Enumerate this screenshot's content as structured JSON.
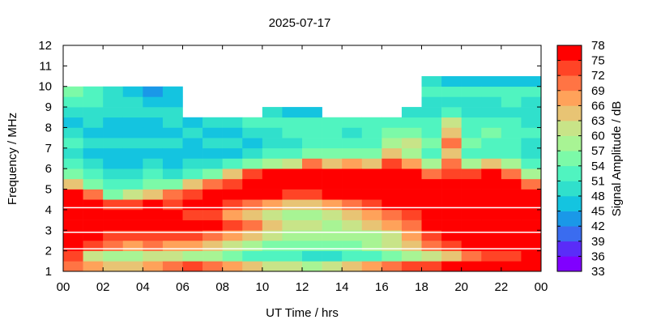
{
  "chart_data": {
    "type": "heatmap",
    "title": "2025-07-17",
    "xlabel": "UT Time / hrs",
    "ylabel": "Frequency / MHz",
    "xlim": [
      0,
      24
    ],
    "ylim": [
      1,
      12
    ],
    "x_ticks": [
      "00",
      "02",
      "04",
      "06",
      "08",
      "10",
      "12",
      "14",
      "16",
      "18",
      "20",
      "22",
      "00"
    ],
    "y_ticks": [
      "1",
      "2",
      "3",
      "4",
      "5",
      "6",
      "7",
      "8",
      "9",
      "10",
      "11",
      "12"
    ],
    "x_bin_hours": 1,
    "y_bin_mhz": 0.5,
    "y_start_mhz": 1,
    "gaps_mhz": [
      2.1,
      2.9,
      4.1
    ],
    "colorbar": {
      "label": "Signal Amplitude / dB",
      "ticks": [
        "33",
        "36",
        "39",
        "42",
        "45",
        "48",
        "51",
        "54",
        "57",
        "60",
        "63",
        "66",
        "69",
        "72",
        "75",
        "78"
      ],
      "range": [
        33,
        78
      ],
      "colors": [
        "#8000ff",
        "#5a2cf8",
        "#3a6cf0",
        "#1a98e8",
        "#14c4e0",
        "#30e0cc",
        "#50f4c0",
        "#7cfaa8",
        "#a8f494",
        "#c8e488",
        "#e8c474",
        "#ffa25a",
        "#ff7444",
        "#ff4426",
        "#ff0000"
      ]
    },
    "values_db_by_hour": [
      [
        70,
        73,
        76,
        76,
        76,
        76,
        76,
        76,
        64,
        55,
        52,
        49,
        52,
        49,
        46,
        49,
        52,
        55
      ],
      [
        67,
        61,
        73,
        76,
        76,
        76,
        76,
        70,
        55,
        52,
        49,
        46,
        49,
        46,
        49,
        49,
        52,
        52
      ],
      [
        64,
        58,
        70,
        73,
        76,
        76,
        73,
        55,
        52,
        49,
        46,
        46,
        49,
        46,
        46,
        49,
        49,
        49
      ],
      [
        64,
        58,
        67,
        73,
        76,
        76,
        73,
        61,
        52,
        49,
        46,
        46,
        49,
        46,
        46,
        49,
        49,
        46
      ],
      [
        67,
        61,
        70,
        73,
        76,
        76,
        76,
        64,
        55,
        52,
        49,
        46,
        49,
        46,
        46,
        49,
        46,
        43
      ],
      [
        70,
        61,
        67,
        73,
        76,
        76,
        73,
        70,
        55,
        49,
        46,
        46,
        49,
        46,
        49,
        49,
        46,
        46
      ],
      [
        73,
        58,
        67,
        73,
        76,
        73,
        76,
        73,
        64,
        52,
        49,
        46,
        46,
        49,
        46
      ],
      [
        70,
        58,
        64,
        70,
        76,
        73,
        76,
        76,
        70,
        55,
        49,
        46,
        49,
        46,
        49
      ],
      [
        67,
        55,
        61,
        67,
        73,
        67,
        73,
        76,
        73,
        64,
        52,
        46,
        49,
        46,
        49
      ],
      [
        64,
        52,
        58,
        64,
        70,
        64,
        70,
        76,
        76,
        73,
        55,
        49,
        46,
        49,
        52
      ],
      [
        61,
        52,
        55,
        61,
        64,
        61,
        67,
        76,
        76,
        76,
        58,
        52,
        49,
        49,
        52,
        49
      ],
      [
        61,
        52,
        55,
        58,
        61,
        58,
        64,
        73,
        76,
        76,
        61,
        52,
        49,
        52,
        52,
        46
      ],
      [
        58,
        49,
        55,
        58,
        61,
        58,
        64,
        73,
        76,
        76,
        70,
        55,
        52,
        52,
        52,
        46
      ],
      [
        61,
        49,
        55,
        58,
        58,
        61,
        67,
        76,
        76,
        76,
        64,
        55,
        52,
        52,
        52
      ],
      [
        64,
        52,
        55,
        58,
        61,
        64,
        70,
        76,
        76,
        76,
        67,
        55,
        52,
        49,
        52
      ],
      [
        67,
        52,
        58,
        58,
        64,
        67,
        73,
        76,
        76,
        76,
        64,
        55,
        52,
        52,
        52
      ],
      [
        70,
        55,
        61,
        61,
        67,
        70,
        76,
        76,
        76,
        76,
        73,
        64,
        58,
        55,
        52
      ],
      [
        73,
        58,
        64,
        67,
        70,
        73,
        76,
        76,
        76,
        76,
        67,
        58,
        61,
        55,
        52,
        49
      ],
      [
        73,
        61,
        70,
        73,
        76,
        76,
        76,
        76,
        76,
        70,
        58,
        52,
        55,
        52,
        52,
        49,
        49,
        52,
        49
      ],
      [
        76,
        64,
        73,
        76,
        76,
        76,
        76,
        76,
        76,
        73,
        70,
        64,
        70,
        64,
        61,
        52,
        49,
        52,
        46
      ],
      [
        76,
        70,
        76,
        76,
        76,
        76,
        76,
        76,
        76,
        73,
        58,
        52,
        55,
        52,
        52,
        49,
        49,
        52,
        46
      ],
      [
        76,
        73,
        76,
        76,
        76,
        76,
        76,
        76,
        76,
        76,
        64,
        52,
        52,
        55,
        52,
        49,
        49,
        52,
        46
      ],
      [
        76,
        73,
        76,
        76,
        76,
        76,
        76,
        76,
        76,
        70,
        58,
        52,
        52,
        52,
        52,
        49,
        52,
        52,
        46
      ],
      [
        76,
        76,
        76,
        76,
        76,
        76,
        76,
        76,
        70,
        58,
        52,
        49,
        49,
        52,
        49,
        49,
        49,
        52,
        46
      ]
    ]
  }
}
